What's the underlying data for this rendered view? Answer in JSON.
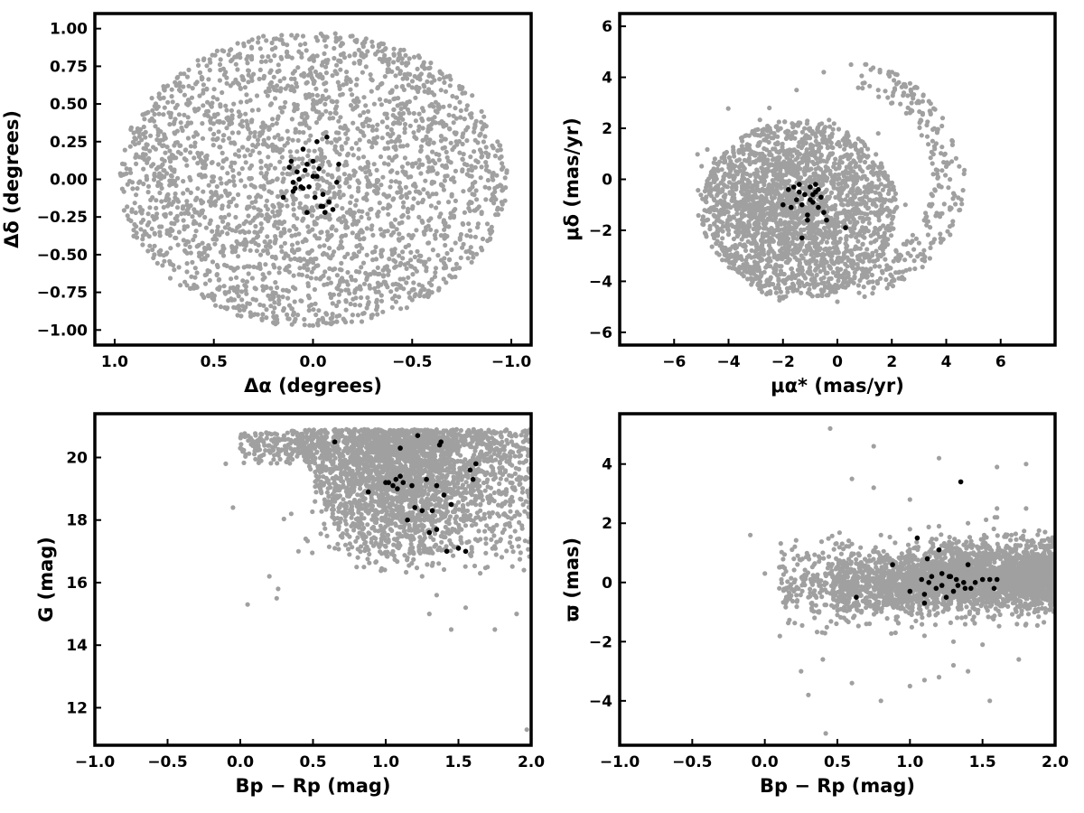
{
  "chart_data": [
    {
      "type": "scatter",
      "xlabel": "Δα (degrees)",
      "ylabel": "Δδ (degrees)",
      "xlim": [
        1.1,
        -1.1
      ],
      "ylim": [
        -1.1,
        1.1
      ],
      "x_inverted": true,
      "xticks": [
        "1.0",
        "0.5",
        "0.0",
        "−0.5",
        "−1.0"
      ],
      "yticks": [
        "−1.00",
        "−0.75",
        "−0.50",
        "−0.25",
        "0.00",
        "0.25",
        "0.50",
        "0.75",
        "1.00"
      ],
      "series": [
        {
          "color": "#a0a0a0",
          "note_shape": "dense uniform disk, radius 1 degree",
          "x": [
            0.95,
            0.9,
            0.85,
            0.8,
            0.75,
            0.7,
            0.65,
            0.6,
            0.55,
            0.5,
            0.45,
            0.4,
            0.35,
            0.3,
            0.25,
            0.2,
            0.15,
            0.1,
            0.05,
            0.0,
            -0.05,
            -0.1,
            -0.15,
            -0.2,
            -0.25,
            -0.3,
            -0.35,
            -0.4,
            -0.45,
            -0.5,
            -0.55,
            -0.6,
            -0.65,
            -0.7,
            -0.75,
            -0.8,
            -0.85,
            -0.9,
            -0.95,
            0.5,
            0.3,
            0.1,
            -0.1,
            -0.3,
            -0.5,
            0.6,
            0.2,
            -0.2,
            -0.6,
            0.7,
            -0.7,
            0.4,
            -0.4,
            0.0
          ],
          "y": [
            0.1,
            -0.3,
            0.4,
            -0.5,
            0.6,
            -0.6,
            0.7,
            -0.7,
            0.8,
            -0.8,
            0.85,
            -0.85,
            0.9,
            -0.9,
            0.95,
            -0.95,
            0.9,
            -0.9,
            0.95,
            -0.97,
            0.95,
            -0.95,
            0.9,
            -0.9,
            0.9,
            -0.9,
            0.85,
            -0.85,
            0.8,
            -0.8,
            0.75,
            -0.75,
            0.7,
            -0.65,
            0.6,
            -0.55,
            0.45,
            -0.35,
            0.15,
            0.3,
            -0.4,
            0.6,
            -0.6,
            0.35,
            0.1,
            -0.2,
            0.2,
            -0.3,
            0.4,
            0.05,
            -0.1,
            0.5,
            -0.5,
            0.5
          ]
        },
        {
          "color": "#000000",
          "x": [
            0.12,
            0.08,
            0.05,
            0.03,
            0.0,
            -0.02,
            -0.05,
            -0.08,
            -0.1,
            -0.13,
            0.1,
            0.06,
            0.02,
            -0.01,
            -0.04,
            -0.06,
            0.15,
            0.1,
            0.07,
            0.0,
            -0.03,
            -0.07,
            -0.12,
            0.05,
            -0.02,
            0.09,
            0.03,
            -0.05,
            0.11,
            0.04
          ],
          "y": [
            0.08,
            0.05,
            0.2,
            0.1,
            0.12,
            0.02,
            -0.1,
            -0.15,
            -0.2,
            0.1,
            -0.02,
            -0.05,
            -0.05,
            -0.12,
            -0.18,
            -0.22,
            -0.12,
            -0.08,
            0.0,
            0.02,
            0.07,
            0.28,
            -0.02,
            -0.06,
            0.25,
            -0.06,
            -0.22,
            -0.18,
            0.12,
            0.06
          ]
        }
      ]
    },
    {
      "type": "scatter",
      "xlabel": "μα* (mas/yr)",
      "ylabel": "μδ (mas/yr)",
      "xlim": [
        -8,
        8
      ],
      "ylim": [
        -6.5,
        6.5
      ],
      "xticks": [
        "−6",
        "−4",
        "−2",
        "0",
        "2",
        "4",
        "6"
      ],
      "yticks": [
        "−6",
        "−4",
        "−2",
        "0",
        "2",
        "4",
        "6"
      ],
      "series": [
        {
          "color": "#a0a0a0",
          "note_shape": "disk centered near (-1.5,-1.2), radius ~3.7, with sparse tail toward positive x",
          "x": [
            -4.8,
            -4.5,
            -4,
            -3.5,
            -3,
            -2.5,
            -2,
            -1.5,
            -1,
            -0.5,
            0,
            0.5,
            1,
            1.5,
            -4,
            -3,
            -2,
            -1,
            0,
            1,
            -3,
            -2,
            -1,
            0,
            1,
            2,
            2.5,
            3,
            3.5,
            4,
            4.5,
            -2.5,
            -1.5,
            -0.5,
            0.5,
            -3.5,
            -2.5,
            1.5,
            2,
            3
          ],
          "y": [
            -0.2,
            0.8,
            -2,
            1.5,
            -3,
            2.8,
            -4,
            3.5,
            -4.5,
            4.2,
            -4.8,
            4.5,
            -4.6,
            3.5,
            -1,
            -2.5,
            0.5,
            -2,
            0,
            -0.5,
            -1.5,
            -3,
            1,
            -3.5,
            -2,
            -4,
            -1,
            -2.5,
            1.5,
            0.5,
            -1.2,
            -0.5,
            -1.5,
            -1,
            -2.8,
            0,
            2,
            1.8,
            -3.8,
            3
          ]
        },
        {
          "color": "#000000",
          "x": [
            -1.6,
            -1.4,
            -1.2,
            -1.0,
            -0.8,
            -0.7,
            -1.5,
            -1.3,
            -0.9,
            -0.6,
            -1.1,
            -1.7,
            -0.4,
            -1.8,
            -0.5,
            -1.3,
            -0.8,
            -1.0,
            -2.0,
            0.3,
            -1.4,
            -0.7,
            -1.1,
            -0.9
          ],
          "y": [
            -0.3,
            -0.5,
            -0.6,
            -0.3,
            -0.2,
            -0.4,
            -0.8,
            -1.0,
            -0.9,
            -0.7,
            -1.4,
            -1.1,
            -1.6,
            -0.4,
            -1.3,
            -2.3,
            -0.5,
            -0.8,
            -1.0,
            -1.9,
            -0.2,
            -1.1,
            -1.6,
            -0.6
          ]
        }
      ]
    },
    {
      "type": "scatter",
      "xlabel": "Bp − Rp (mag)",
      "ylabel": "G (mag)",
      "xlim": [
        -1.0,
        2.0
      ],
      "ylim": [
        10.8,
        21.4
      ],
      "xticks": [
        "−1.0",
        "−0.5",
        "0.0",
        "0.5",
        "1.0",
        "1.5",
        "2.0"
      ],
      "yticks": [
        "12",
        "14",
        "16",
        "18",
        "20"
      ],
      "series": [
        {
          "color": "#a0a0a0",
          "note_shape": "dense wedge between Bp-Rp 0.3-2.0 and G 16-21, sparse outliers",
          "x": [
            -0.1,
            0.0,
            0.1,
            0.2,
            0.3,
            0.4,
            0.5,
            0.6,
            0.7,
            0.8,
            0.9,
            1.0,
            1.1,
            1.2,
            1.3,
            1.4,
            1.5,
            1.6,
            1.7,
            1.8,
            1.9,
            2.0,
            0.05,
            0.25,
            0.35,
            0.45,
            0.55,
            0.65,
            0.75,
            0.85,
            0.95,
            1.05,
            1.15,
            1.25,
            1.35,
            1.45,
            1.55,
            1.65,
            1.75,
            1.85,
            1.95,
            -0.05,
            0.2,
            0.4,
            0.8,
            1.3,
            1.7,
            1.97,
            1.9,
            0.26
          ],
          "y": [
            19.8,
            20.3,
            20.5,
            20.2,
            20.7,
            20.4,
            20.6,
            20.1,
            19.7,
            19.2,
            18.8,
            18.4,
            18.0,
            17.8,
            18.5,
            19.0,
            19.4,
            20.0,
            20.3,
            20.5,
            20.4,
            19.8,
            15.3,
            15.5,
            18.2,
            17.4,
            19.0,
            17.1,
            16.9,
            16.5,
            17.2,
            17.0,
            16.8,
            16.2,
            15.6,
            14.5,
            15.2,
            16.3,
            14.5,
            17.9,
            16.4,
            18.4,
            16.2,
            17.0,
            16.5,
            15.0,
            16.5,
            11.3,
            15.0,
            15.8
          ]
        },
        {
          "color": "#000000",
          "x": [
            0.65,
            0.88,
            1.0,
            1.02,
            1.05,
            1.07,
            1.08,
            1.1,
            1.12,
            1.15,
            1.18,
            1.2,
            1.22,
            1.25,
            1.28,
            1.3,
            1.32,
            1.35,
            1.37,
            1.38,
            1.4,
            1.42,
            1.45,
            1.55,
            1.58,
            1.6,
            1.62,
            1.5,
            1.35,
            1.1
          ],
          "y": [
            20.5,
            18.9,
            19.2,
            19.2,
            19.1,
            19.3,
            19.0,
            19.4,
            19.2,
            18.0,
            19.1,
            18.4,
            20.7,
            18.3,
            19.3,
            17.6,
            18.3,
            19.1,
            20.4,
            20.5,
            18.8,
            17.0,
            18.5,
            17.0,
            19.6,
            19.3,
            19.8,
            17.1,
            17.7,
            20.3
          ]
        }
      ]
    },
    {
      "type": "scatter",
      "xlabel": "Bp − Rp (mag)",
      "ylabel": "ϖ (mas)",
      "xlim": [
        -1.0,
        2.0
      ],
      "ylim": [
        -5.5,
        5.7
      ],
      "xticks": [
        "−1.0",
        "−0.5",
        "0.0",
        "0.5",
        "1.0",
        "1.5",
        "2.0"
      ],
      "yticks": [
        "−4",
        "−2",
        "0",
        "2",
        "4"
      ],
      "series": [
        {
          "color": "#a0a0a0",
          "note_shape": "dense horizontal band around 0 for Bp-Rp 0.5-2.0, spread ±1.5",
          "x": [
            -0.1,
            0.0,
            0.1,
            0.2,
            0.3,
            0.4,
            0.5,
            0.6,
            0.7,
            0.8,
            0.9,
            1.0,
            1.1,
            1.2,
            1.3,
            1.4,
            1.5,
            1.6,
            1.7,
            1.8,
            1.9,
            2.0,
            0.4,
            0.6,
            0.8,
            1.0,
            1.2,
            1.4,
            1.6,
            1.8,
            0.45,
            0.75,
            1.1,
            1.3,
            1.55,
            1.8,
            0.25,
            0.3,
            0.6,
            1.0,
            1.2,
            1.6,
            1.75,
            0.42,
            0.75
          ],
          "y": [
            1.6,
            0.3,
            -0.2,
            0.8,
            -0.5,
            1.0,
            -1.1,
            1.3,
            -1.4,
            1.6,
            -1.7,
            1.8,
            -1.8,
            1.9,
            -2.0,
            2.0,
            -2.1,
            2.2,
            1.6,
            -1.4,
            1.2,
            0.5,
            -2.6,
            3.5,
            -4.0,
            -3.5,
            4.2,
            -3.0,
            3.9,
            4.0,
            5.2,
            4.6,
            -3.3,
            -2.8,
            -4.0,
            2.5,
            -3.0,
            -3.8,
            -3.4,
            2.8,
            -3.2,
            2.5,
            -2.6,
            -5.1,
            3.2
          ]
        },
        {
          "color": "#000000",
          "x": [
            0.63,
            0.88,
            1.0,
            1.05,
            1.08,
            1.1,
            1.12,
            1.15,
            1.18,
            1.2,
            1.22,
            1.25,
            1.28,
            1.3,
            1.32,
            1.35,
            1.37,
            1.4,
            1.42,
            1.45,
            1.5,
            1.55,
            1.58,
            1.6,
            1.1,
            1.27,
            1.33,
            1.38,
            1.13,
            1.22
          ],
          "y": [
            -0.5,
            0.6,
            -0.3,
            1.5,
            0.1,
            -0.4,
            0.8,
            0.2,
            -0.2,
            1.1,
            0.3,
            -0.5,
            0.2,
            -0.3,
            0.1,
            3.4,
            0.0,
            0.6,
            -0.2,
            0.0,
            0.1,
            0.1,
            -0.2,
            0.1,
            -0.7,
            0.2,
            -0.1,
            -0.2,
            0.0,
            -0.1
          ]
        }
      ]
    }
  ]
}
